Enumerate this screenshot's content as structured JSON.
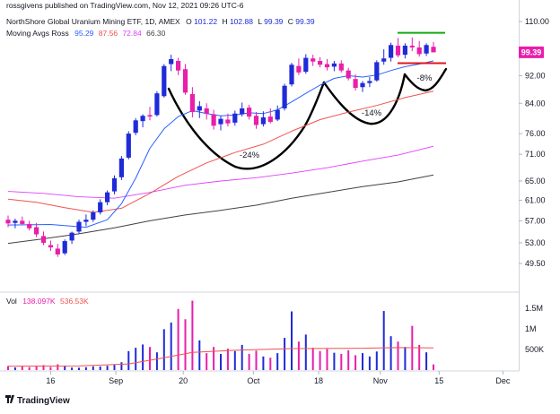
{
  "header": {
    "published": "rossgivens published on TradingView.com, Nov 12, 2021 09:26 UTC-6",
    "symbol_line": "NorthShore Global Uranium Mining ETF, 1D, AMEX",
    "o_label": "O",
    "o_value": "101.22",
    "h_label": "H",
    "h_value": "102.88",
    "l_label": "L",
    "l_value": "99.39",
    "c_label": "C",
    "c_value": "99.39",
    "ma_label": "Moving Avgs Ross",
    "ma_values": [
      "95.29",
      "87.56",
      "72.84",
      "66.30"
    ],
    "vol_label": "Vol",
    "vol_values": [
      "138.097K",
      "536.53K"
    ]
  },
  "footer": {
    "brand": "TradingView"
  },
  "colors": {
    "up": "#1f2bd8",
    "down": "#e91eaa",
    "ma1": "#2962ff",
    "ma2": "#ef5350",
    "ma3": "#e040fb",
    "ma4": "#424242",
    "resistance": "#11aa11",
    "support": "#e0151b",
    "pattern": "#000000",
    "price_badge": "#e91eaa",
    "vol_avg": "#ef5350"
  },
  "chart_data": {
    "type": "candlestick",
    "x_ticks": [
      "16",
      "Sep",
      "20",
      "Oct",
      "18",
      "Nov",
      "15",
      "Dec"
    ],
    "price_ticks": [
      "110.00",
      "92.00",
      "84.00",
      "76.00",
      "71.00",
      "65.00",
      "61.00",
      "57.00",
      "53.00",
      "49.50"
    ],
    "price_tick_values": [
      110,
      92,
      84,
      76,
      71,
      65,
      61,
      57,
      53,
      49.5
    ],
    "volume_ticks": [
      "1.5M",
      "1M",
      "500K"
    ],
    "volume_tick_values": [
      1500000,
      1000000,
      500000
    ],
    "last_price": "99.39",
    "ylim": [
      47.5,
      112
    ],
    "candles": [
      {
        "o": 57.2,
        "h": 58.0,
        "l": 55.8,
        "c": 56.5
      },
      {
        "o": 56.6,
        "h": 57.4,
        "l": 55.6,
        "c": 57.0
      },
      {
        "o": 57.0,
        "h": 57.8,
        "l": 56.2,
        "c": 56.4
      },
      {
        "o": 56.4,
        "h": 57.0,
        "l": 55.2,
        "c": 55.6
      },
      {
        "o": 55.8,
        "h": 56.6,
        "l": 54.0,
        "c": 54.5
      },
      {
        "o": 54.2,
        "h": 55.0,
        "l": 52.6,
        "c": 53.0
      },
      {
        "o": 52.6,
        "h": 53.4,
        "l": 51.6,
        "c": 52.2
      },
      {
        "o": 52.0,
        "h": 52.8,
        "l": 50.6,
        "c": 51.0
      },
      {
        "o": 51.2,
        "h": 53.6,
        "l": 50.9,
        "c": 53.3
      },
      {
        "o": 53.4,
        "h": 55.0,
        "l": 52.8,
        "c": 54.8
      },
      {
        "o": 55.0,
        "h": 57.2,
        "l": 54.6,
        "c": 56.8
      },
      {
        "o": 56.8,
        "h": 58.2,
        "l": 56.0,
        "c": 57.2
      },
      {
        "o": 57.2,
        "h": 59.0,
        "l": 56.8,
        "c": 58.6
      },
      {
        "o": 58.6,
        "h": 61.2,
        "l": 58.2,
        "c": 60.6
      },
      {
        "o": 60.6,
        "h": 63.0,
        "l": 60.0,
        "c": 62.6
      },
      {
        "o": 62.8,
        "h": 66.2,
        "l": 62.2,
        "c": 65.6
      },
      {
        "o": 65.8,
        "h": 70.6,
        "l": 65.2,
        "c": 70.0
      },
      {
        "o": 70.2,
        "h": 76.6,
        "l": 69.8,
        "c": 76.0
      },
      {
        "o": 76.2,
        "h": 80.0,
        "l": 75.6,
        "c": 79.4
      },
      {
        "o": 79.2,
        "h": 81.0,
        "l": 77.6,
        "c": 80.6
      },
      {
        "o": 80.8,
        "h": 83.0,
        "l": 79.4,
        "c": 80.4
      },
      {
        "o": 80.8,
        "h": 87.4,
        "l": 80.4,
        "c": 86.8
      },
      {
        "o": 86.0,
        "h": 95.6,
        "l": 85.6,
        "c": 95.0
      },
      {
        "o": 95.6,
        "h": 98.6,
        "l": 93.4,
        "c": 97.2
      },
      {
        "o": 96.6,
        "h": 97.6,
        "l": 92.2,
        "c": 93.6
      },
      {
        "o": 94.0,
        "h": 95.6,
        "l": 86.4,
        "c": 87.0
      },
      {
        "o": 86.6,
        "h": 88.6,
        "l": 80.2,
        "c": 81.6
      },
      {
        "o": 82.0,
        "h": 84.6,
        "l": 80.0,
        "c": 83.2
      },
      {
        "o": 82.6,
        "h": 84.0,
        "l": 79.6,
        "c": 81.2
      },
      {
        "o": 81.0,
        "h": 82.2,
        "l": 77.0,
        "c": 78.0
      },
      {
        "o": 78.4,
        "h": 80.6,
        "l": 76.8,
        "c": 79.8
      },
      {
        "o": 79.6,
        "h": 81.2,
        "l": 77.8,
        "c": 78.6
      },
      {
        "o": 78.8,
        "h": 82.0,
        "l": 78.0,
        "c": 81.2
      },
      {
        "o": 81.0,
        "h": 84.2,
        "l": 80.4,
        "c": 82.6
      },
      {
        "o": 82.8,
        "h": 83.6,
        "l": 79.6,
        "c": 80.4
      },
      {
        "o": 80.6,
        "h": 81.6,
        "l": 77.2,
        "c": 78.2
      },
      {
        "o": 78.4,
        "h": 81.8,
        "l": 77.8,
        "c": 80.2
      },
      {
        "o": 80.4,
        "h": 82.6,
        "l": 78.6,
        "c": 79.0
      },
      {
        "o": 79.6,
        "h": 83.4,
        "l": 79.2,
        "c": 82.2
      },
      {
        "o": 82.6,
        "h": 89.6,
        "l": 82.0,
        "c": 89.0
      },
      {
        "o": 89.4,
        "h": 96.0,
        "l": 88.8,
        "c": 95.4
      },
      {
        "o": 95.0,
        "h": 97.4,
        "l": 92.2,
        "c": 93.0
      },
      {
        "o": 93.2,
        "h": 98.8,
        "l": 92.6,
        "c": 97.6
      },
      {
        "o": 97.4,
        "h": 98.6,
        "l": 95.0,
        "c": 96.4
      },
      {
        "o": 96.6,
        "h": 97.8,
        "l": 94.6,
        "c": 95.4
      },
      {
        "o": 95.6,
        "h": 97.2,
        "l": 93.6,
        "c": 94.6
      },
      {
        "o": 94.8,
        "h": 96.6,
        "l": 93.4,
        "c": 95.8
      },
      {
        "o": 95.8,
        "h": 96.8,
        "l": 93.0,
        "c": 93.6
      },
      {
        "o": 93.6,
        "h": 94.4,
        "l": 90.6,
        "c": 91.2
      },
      {
        "o": 91.0,
        "h": 92.4,
        "l": 87.6,
        "c": 88.4
      },
      {
        "o": 88.6,
        "h": 90.4,
        "l": 87.2,
        "c": 89.8
      },
      {
        "o": 89.8,
        "h": 91.6,
        "l": 88.6,
        "c": 90.4
      },
      {
        "o": 90.6,
        "h": 96.8,
        "l": 90.2,
        "c": 96.2
      },
      {
        "o": 96.4,
        "h": 100.4,
        "l": 95.4,
        "c": 97.4
      },
      {
        "o": 97.6,
        "h": 102.6,
        "l": 96.4,
        "c": 101.8
      },
      {
        "o": 101.6,
        "h": 104.2,
        "l": 97.8,
        "c": 98.4
      },
      {
        "o": 98.6,
        "h": 102.4,
        "l": 97.4,
        "c": 101.6
      },
      {
        "o": 101.6,
        "h": 104.4,
        "l": 99.8,
        "c": 101.0
      },
      {
        "o": 101.0,
        "h": 103.2,
        "l": 98.0,
        "c": 98.8
      },
      {
        "o": 99.0,
        "h": 102.4,
        "l": 98.2,
        "c": 101.8
      },
      {
        "o": 101.22,
        "h": 102.88,
        "l": 99.39,
        "c": 99.39
      }
    ],
    "volume": [
      98000,
      65000,
      88000,
      72000,
      95000,
      120000,
      76000,
      140000,
      110000,
      62000,
      58000,
      70000,
      92000,
      88000,
      105000,
      128000,
      190000,
      460000,
      540000,
      620000,
      560000,
      430000,
      990000,
      1150000,
      1480000,
      1230000,
      1680000,
      720000,
      410000,
      560000,
      390000,
      520000,
      460000,
      610000,
      390000,
      470000,
      330000,
      300000,
      410000,
      780000,
      1420000,
      690000,
      860000,
      540000,
      460000,
      510000,
      420000,
      390000,
      480000,
      360000,
      410000,
      330000,
      450000,
      1430000,
      820000,
      690000,
      560000,
      1070000,
      610000,
      430000,
      138097
    ],
    "ma1": [
      [
        0,
        56.2
      ],
      [
        6,
        56.3
      ],
      [
        11,
        55.8
      ],
      [
        14,
        57.2
      ],
      [
        16,
        60.3
      ],
      [
        18,
        65.6
      ],
      [
        20,
        72.4
      ],
      [
        22,
        77.2
      ],
      [
        24,
        80.4
      ],
      [
        26,
        82.0
      ],
      [
        28,
        81.2
      ],
      [
        30,
        80.6
      ],
      [
        32,
        80.8
      ],
      [
        34,
        81.4
      ],
      [
        36,
        81.2
      ],
      [
        38,
        82.2
      ],
      [
        40,
        84.4
      ],
      [
        42,
        86.8
      ],
      [
        44,
        89.2
      ],
      [
        46,
        91.2
      ],
      [
        48,
        92.0
      ],
      [
        50,
        91.6
      ],
      [
        52,
        92.2
      ],
      [
        54,
        93.6
      ],
      [
        56,
        94.8
      ],
      [
        58,
        95.6
      ],
      [
        60,
        96.6
      ]
    ],
    "ma2": [
      [
        0,
        61.2
      ],
      [
        4,
        60.6
      ],
      [
        8,
        59.5
      ],
      [
        12,
        58.6
      ],
      [
        16,
        59.4
      ],
      [
        20,
        62.4
      ],
      [
        24,
        66.0
      ],
      [
        28,
        69.0
      ],
      [
        32,
        71.4
      ],
      [
        36,
        73.4
      ],
      [
        40,
        76.6
      ],
      [
        44,
        79.6
      ],
      [
        48,
        81.6
      ],
      [
        52,
        83.4
      ],
      [
        56,
        85.6
      ],
      [
        60,
        87.4
      ]
    ],
    "ma3": [
      [
        0,
        62.8
      ],
      [
        5,
        62.4
      ],
      [
        10,
        61.7
      ],
      [
        15,
        61.4
      ],
      [
        20,
        62.6
      ],
      [
        25,
        64.1
      ],
      [
        30,
        65.0
      ],
      [
        35,
        65.7
      ],
      [
        40,
        66.7
      ],
      [
        45,
        67.9
      ],
      [
        50,
        69.4
      ],
      [
        55,
        70.8
      ],
      [
        60,
        72.9
      ]
    ],
    "ma4": [
      [
        0,
        52.9
      ],
      [
        5,
        53.7
      ],
      [
        10,
        54.6
      ],
      [
        15,
        55.7
      ],
      [
        20,
        57.0
      ],
      [
        25,
        58.1
      ],
      [
        30,
        59.0
      ],
      [
        35,
        60.0
      ],
      [
        40,
        61.4
      ],
      [
        45,
        62.6
      ],
      [
        50,
        63.8
      ],
      [
        55,
        64.8
      ],
      [
        60,
        66.3
      ]
    ],
    "vol_avg": [
      [
        0,
        95000
      ],
      [
        10,
        100000
      ],
      [
        17,
        150000
      ],
      [
        22,
        300000
      ],
      [
        26,
        430000
      ],
      [
        32,
        480000
      ],
      [
        40,
        520000
      ],
      [
        50,
        530000
      ],
      [
        55,
        545000
      ],
      [
        60,
        536530
      ]
    ],
    "resistance_level": 106.0,
    "support_level": 95.9,
    "annotations": [
      "-24%",
      "-14%",
      "-8%"
    ]
  }
}
